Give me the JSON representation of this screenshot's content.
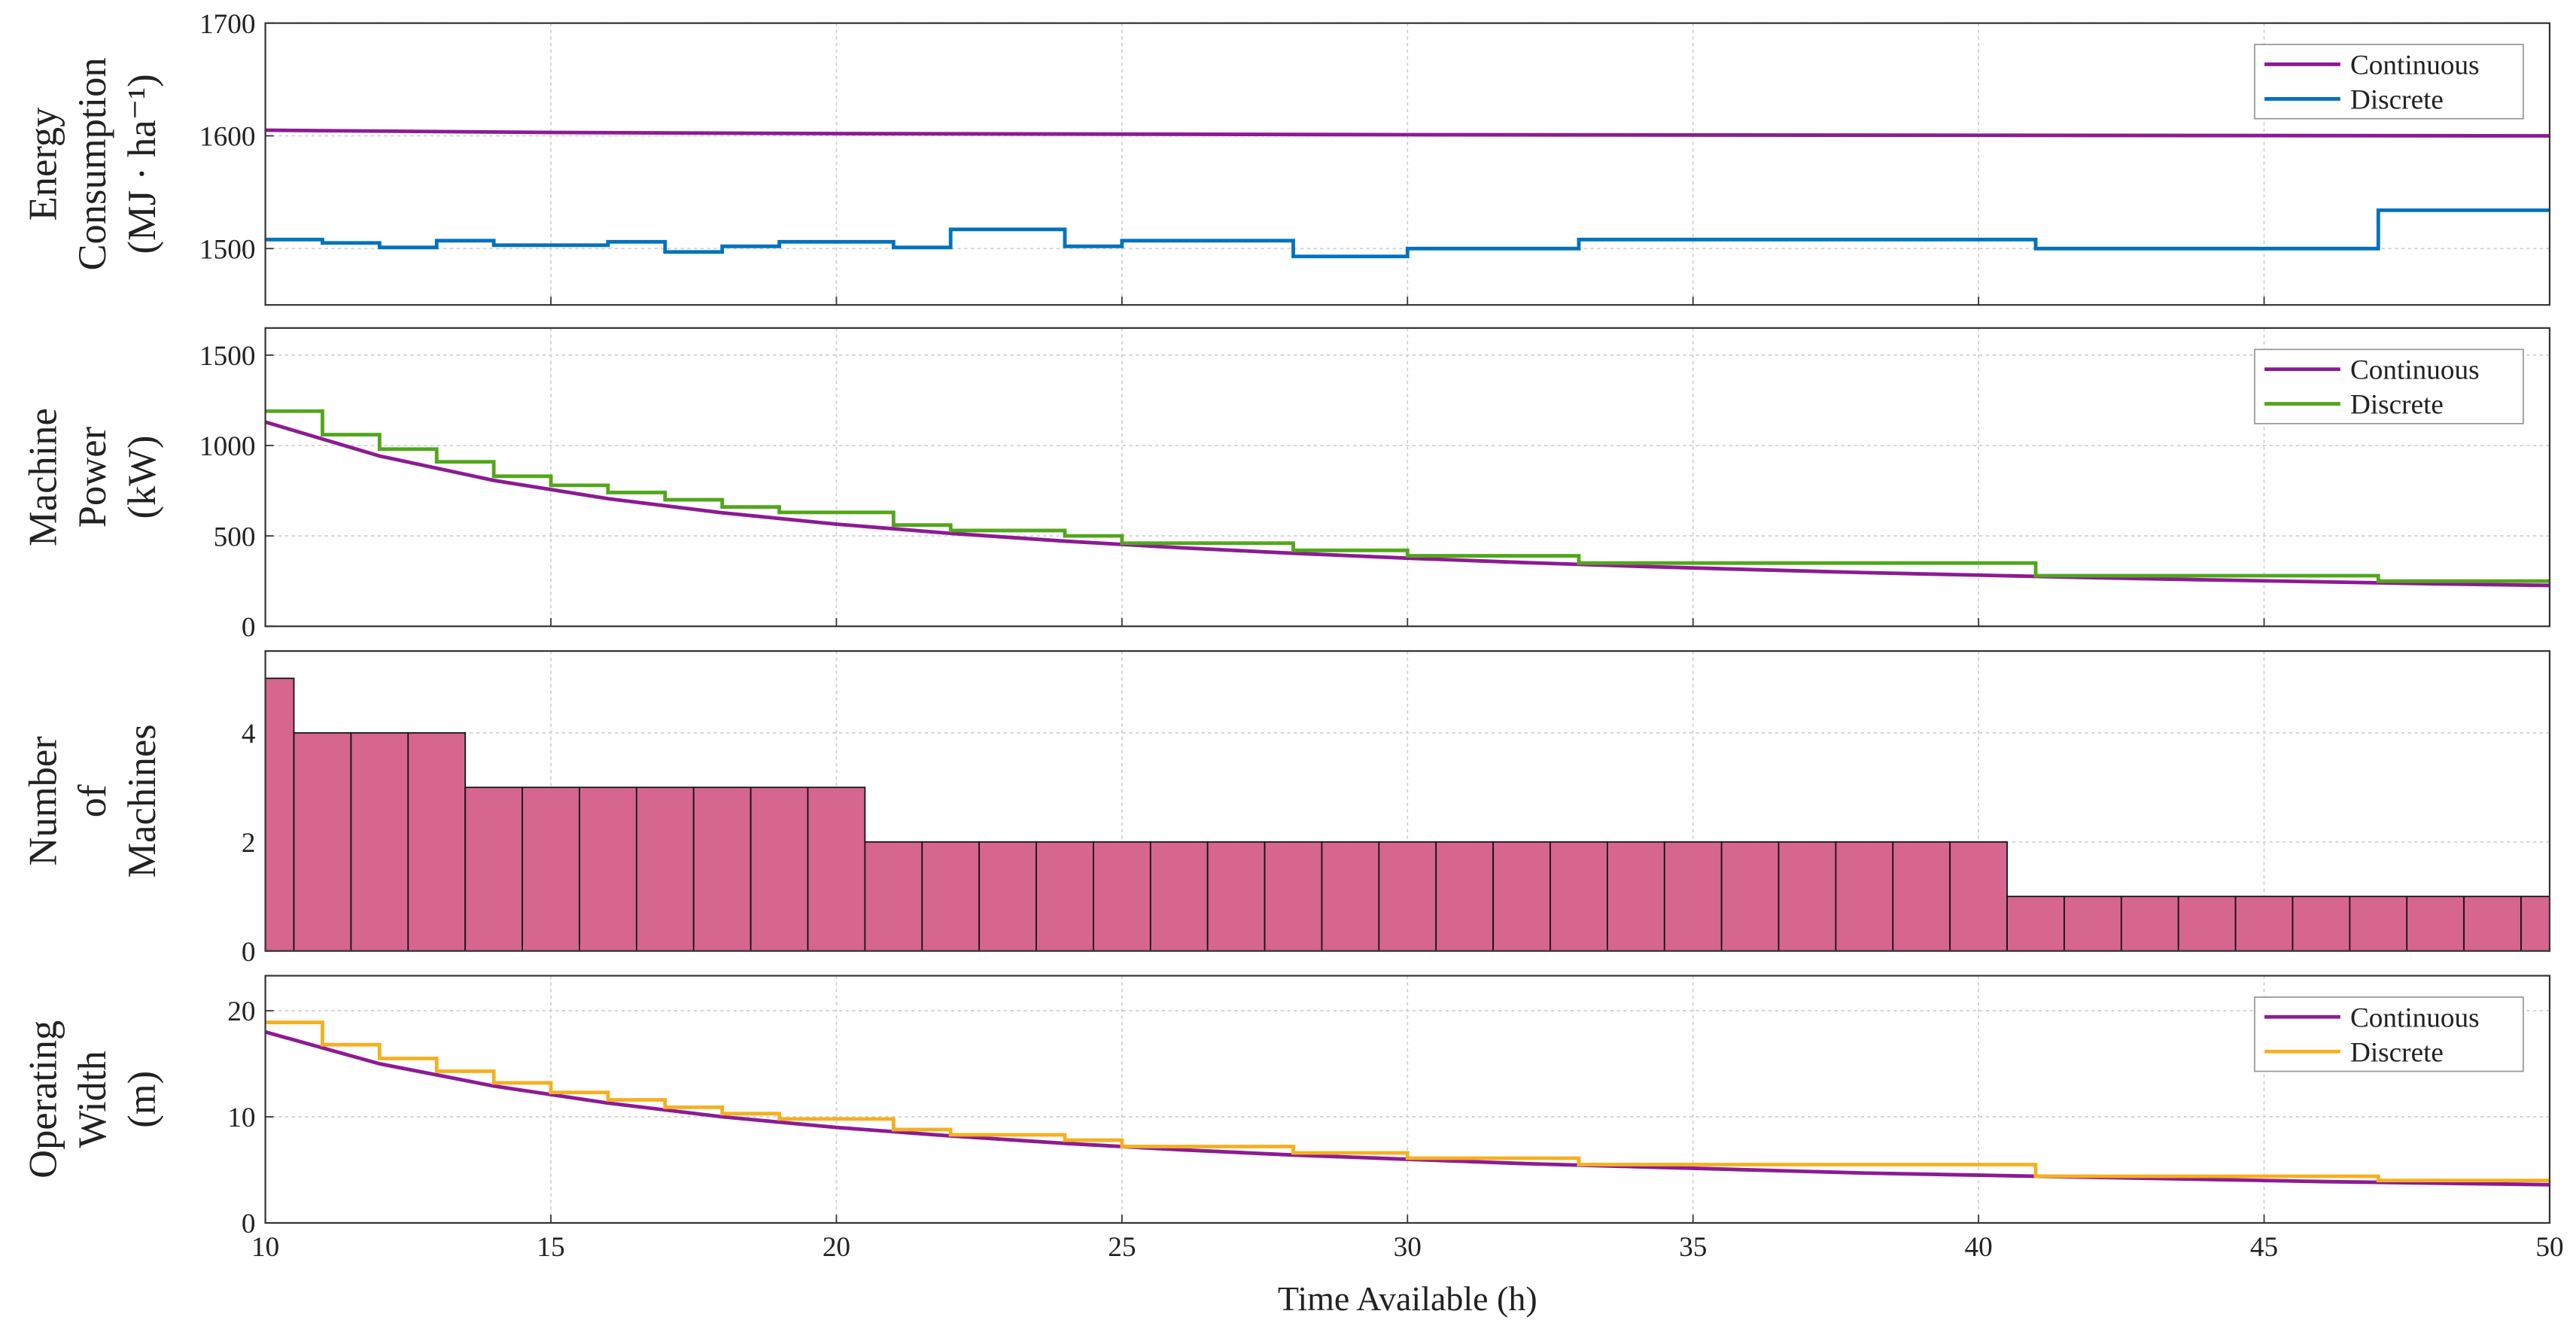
{
  "chart_data": [
    {
      "type": "line",
      "ylabel": [
        "Energy",
        "Consumption",
        "(MJ · ha⁻¹)"
      ],
      "xlim": [
        10,
        50
      ],
      "xticks": [
        10,
        15,
        20,
        25,
        30,
        35,
        40,
        45,
        50
      ],
      "ylim": [
        1450,
        1700
      ],
      "yticks": [
        1500,
        1600,
        1700
      ],
      "grid": true,
      "legend": "upper right",
      "series": [
        {
          "name": "Continuous",
          "color": "#8c1b93",
          "x": [
            10,
            15,
            20,
            30,
            40,
            50
          ],
          "values": [
            1605,
            1603,
            1602,
            1601,
            1600.5,
            1600
          ]
        },
        {
          "name": "Discrete",
          "color": "#0072bd",
          "drawstyle": "steps-post",
          "x": [
            10,
            11,
            12,
            13,
            14,
            16,
            17,
            18,
            19,
            21,
            22,
            24,
            25,
            28,
            30,
            33,
            41,
            47,
            50
          ],
          "values": [
            1508,
            1505,
            1501,
            1507,
            1503,
            1506,
            1497,
            1502,
            1506,
            1501,
            1517,
            1502,
            1507,
            1493,
            1500,
            1508,
            1500,
            1534,
            1534
          ]
        }
      ]
    },
    {
      "type": "line",
      "ylabel": [
        "Machine",
        "Power",
        "(kW)"
      ],
      "xlim": [
        10,
        50
      ],
      "xticks": [
        10,
        15,
        20,
        25,
        30,
        35,
        40,
        45,
        50
      ],
      "ylim": [
        0,
        1650
      ],
      "yticks": [
        0,
        500,
        1000,
        1500
      ],
      "grid": true,
      "legend": "upper right",
      "series": [
        {
          "name": "Continuous",
          "color": "#8c1b93",
          "x": [
            10,
            12,
            14,
            16,
            18,
            20,
            22,
            24,
            26,
            28,
            30,
            32,
            34,
            36,
            38,
            40,
            42,
            44,
            46,
            48,
            50
          ],
          "values": [
            1130,
            942,
            807,
            706,
            628,
            565,
            514,
            471,
            435,
            404,
            377,
            353,
            332,
            314,
            297,
            283,
            269,
            257,
            246,
            235,
            226
          ]
        },
        {
          "name": "Discrete",
          "color": "#52a61c",
          "drawstyle": "steps-post",
          "x": [
            10,
            11,
            12,
            13,
            14,
            15,
            16,
            17,
            18,
            19,
            21,
            22,
            24,
            25,
            28,
            30,
            33,
            41,
            47,
            50
          ],
          "values": [
            1190,
            1060,
            980,
            910,
            830,
            780,
            740,
            700,
            660,
            630,
            560,
            530,
            500,
            460,
            420,
            390,
            350,
            280,
            250,
            250
          ]
        }
      ]
    },
    {
      "type": "bar",
      "ylabel": [
        "Number",
        "of",
        "Machines"
      ],
      "xlim": [
        10,
        50
      ],
      "xticks": [
        10,
        15,
        20,
        25,
        30,
        35,
        40,
        45,
        50
      ],
      "ylim": [
        0,
        5.5
      ],
      "yticks": [
        0,
        2,
        4
      ],
      "grid": true,
      "color": "#d66590",
      "x": [
        10,
        11,
        12,
        13,
        14,
        15,
        16,
        17,
        18,
        19,
        20,
        21,
        22,
        23,
        24,
        25,
        26,
        27,
        28,
        29,
        30,
        31,
        32,
        33,
        34,
        35,
        36,
        37,
        38,
        39,
        40,
        41,
        42,
        43,
        44,
        45,
        46,
        47,
        48,
        49,
        50
      ],
      "values": [
        5,
        4,
        4,
        4,
        3,
        3,
        3,
        3,
        3,
        3,
        3,
        2,
        2,
        2,
        2,
        2,
        2,
        2,
        2,
        2,
        2,
        2,
        2,
        2,
        2,
        2,
        2,
        2,
        2,
        2,
        2,
        1,
        1,
        1,
        1,
        1,
        1,
        1,
        1,
        1,
        1
      ]
    },
    {
      "type": "line",
      "ylabel": [
        "Operating",
        "Width",
        "(m)"
      ],
      "xlabel": "Time Available (h)",
      "xlim": [
        10,
        50
      ],
      "xticks": [
        10,
        15,
        20,
        25,
        30,
        35,
        40,
        45,
        50
      ],
      "ylim": [
        0,
        23.3
      ],
      "yticks": [
        0,
        10,
        20
      ],
      "grid": true,
      "legend": "upper right",
      "series": [
        {
          "name": "Continuous",
          "color": "#8c1b93",
          "x": [
            10,
            12,
            14,
            16,
            18,
            20,
            22,
            24,
            26,
            28,
            30,
            32,
            34,
            36,
            38,
            40,
            42,
            44,
            46,
            48,
            50
          ],
          "values": [
            18,
            15,
            12.9,
            11.3,
            10,
            9,
            8.2,
            7.5,
            6.9,
            6.4,
            6,
            5.6,
            5.3,
            5,
            4.7,
            4.5,
            4.3,
            4.1,
            3.9,
            3.75,
            3.6
          ]
        },
        {
          "name": "Discrete",
          "color": "#f5b020",
          "drawstyle": "steps-post",
          "x": [
            10,
            11,
            12,
            13,
            14,
            15,
            16,
            17,
            18,
            19,
            21,
            22,
            24,
            25,
            28,
            30,
            33,
            41,
            47,
            50
          ],
          "values": [
            18.9,
            16.8,
            15.5,
            14.3,
            13.2,
            12.3,
            11.6,
            10.9,
            10.3,
            9.8,
            8.8,
            8.3,
            7.8,
            7.2,
            6.6,
            6.1,
            5.5,
            4.4,
            4,
            4
          ]
        }
      ]
    }
  ]
}
